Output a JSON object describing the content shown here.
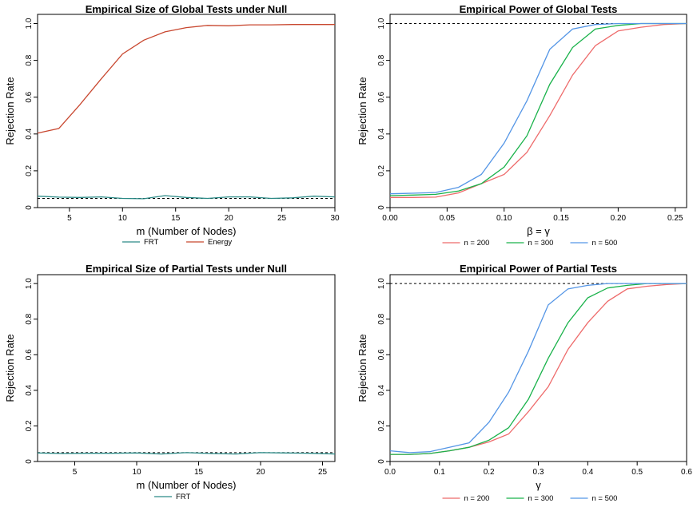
{
  "chart_data": [
    {
      "type": "line",
      "title": "Empirical Size of Global Tests under Null",
      "xlabel": "m (Number of Nodes)",
      "ylabel": "Rejection Rate",
      "xlim": [
        2,
        30
      ],
      "ylim": [
        0,
        1.05
      ],
      "xticks": [
        "5",
        "10",
        "15",
        "20",
        "25",
        "30"
      ],
      "yticks": [
        "0",
        "0.2",
        "0.4",
        "0.6",
        "0.8",
        "1.0"
      ],
      "reference_line": 0.05,
      "legend": "bottom",
      "x": [
        2,
        4,
        6,
        8,
        10,
        12,
        14,
        16,
        18,
        20,
        22,
        24,
        26,
        28,
        30
      ],
      "series": [
        {
          "name": "FRT",
          "color": "#2a8a86",
          "values": [
            0.062,
            0.057,
            0.055,
            0.058,
            0.05,
            0.048,
            0.065,
            0.055,
            0.05,
            0.058,
            0.058,
            0.05,
            0.053,
            0.062,
            0.058
          ]
        },
        {
          "name": "Energy",
          "color": "#c8472f",
          "values": [
            0.405,
            0.43,
            0.56,
            0.7,
            0.835,
            0.91,
            0.955,
            0.978,
            0.99,
            0.988,
            0.993,
            0.993,
            0.995,
            0.995,
            0.995
          ]
        }
      ]
    },
    {
      "type": "line",
      "title": "Empirical Power of Global Tests",
      "xlabel": "β = γ",
      "ylabel": "Rejection Rate",
      "xlim": [
        0,
        0.26
      ],
      "ylim": [
        0,
        1.05
      ],
      "xticks": [
        "0.00",
        "0.05",
        "0.10",
        "0.15",
        "0.20",
        "0.25"
      ],
      "yticks": [
        "0",
        "0.2",
        "0.4",
        "0.6",
        "0.8",
        "1.0"
      ],
      "reference_line": 1.0,
      "legend": "bottom",
      "x": [
        0,
        0.02,
        0.04,
        0.06,
        0.08,
        0.1,
        0.12,
        0.14,
        0.16,
        0.18,
        0.2,
        0.22,
        0.24,
        0.26
      ],
      "series": [
        {
          "name": "n = 200",
          "color": "#ee6b6b",
          "values": [
            0.055,
            0.055,
            0.057,
            0.08,
            0.13,
            0.18,
            0.3,
            0.5,
            0.72,
            0.88,
            0.96,
            0.98,
            0.995,
            1.0
          ]
        },
        {
          "name": "n = 300",
          "color": "#19b24a",
          "values": [
            0.065,
            0.068,
            0.072,
            0.09,
            0.13,
            0.22,
            0.39,
            0.67,
            0.87,
            0.97,
            0.99,
            1.0,
            1.0,
            1.0
          ]
        },
        {
          "name": "n = 500",
          "color": "#5596e6",
          "values": [
            0.075,
            0.078,
            0.082,
            0.11,
            0.18,
            0.35,
            0.58,
            0.86,
            0.97,
            0.995,
            1.0,
            1.0,
            1.0,
            1.0
          ]
        }
      ]
    },
    {
      "type": "line",
      "title": "Empirical Size of Partial Tests under Null",
      "xlabel": "m (Number of Nodes)",
      "ylabel": "Rejection Rate",
      "xlim": [
        2,
        26
      ],
      "ylim": [
        0,
        1.05
      ],
      "xticks": [
        "5",
        "10",
        "15",
        "20",
        "25"
      ],
      "yticks": [
        "0",
        "0.2",
        "0.4",
        "0.6",
        "0.8",
        "1.0"
      ],
      "reference_line": 0.05,
      "legend": "bottom",
      "x": [
        2,
        4,
        6,
        8,
        10,
        12,
        14,
        16,
        18,
        20,
        22,
        24,
        26
      ],
      "series": [
        {
          "name": "FRT",
          "color": "#2a8a86",
          "values": [
            0.048,
            0.045,
            0.046,
            0.046,
            0.048,
            0.042,
            0.05,
            0.045,
            0.042,
            0.05,
            0.048,
            0.046,
            0.042
          ]
        }
      ]
    },
    {
      "type": "line",
      "title": "Empirical Power of Partial Tests",
      "xlabel": "γ",
      "ylabel": "Rejection Rate",
      "xlim": [
        0,
        0.6
      ],
      "ylim": [
        0,
        1.05
      ],
      "xticks": [
        "0.0",
        "0.1",
        "0.2",
        "0.3",
        "0.4",
        "0.5",
        "0.6"
      ],
      "yticks": [
        "0",
        "0.2",
        "0.4",
        "0.6",
        "0.8",
        "1.0"
      ],
      "reference_line": 1.0,
      "legend": "bottom",
      "x": [
        0,
        0.04,
        0.08,
        0.12,
        0.16,
        0.2,
        0.24,
        0.28,
        0.32,
        0.36,
        0.4,
        0.44,
        0.48,
        0.52,
        0.56,
        0.6
      ],
      "series": [
        {
          "name": "n = 200",
          "color": "#ee6b6b",
          "values": [
            0.04,
            0.04,
            0.045,
            0.06,
            0.08,
            0.11,
            0.155,
            0.28,
            0.42,
            0.63,
            0.78,
            0.9,
            0.97,
            0.985,
            0.995,
            1.0
          ]
        },
        {
          "name": "n = 300",
          "color": "#19b24a",
          "values": [
            0.04,
            0.04,
            0.045,
            0.06,
            0.08,
            0.12,
            0.19,
            0.35,
            0.58,
            0.78,
            0.92,
            0.975,
            0.99,
            1.0,
            1.0,
            1.0
          ]
        },
        {
          "name": "n = 500",
          "color": "#5596e6",
          "values": [
            0.06,
            0.05,
            0.055,
            0.08,
            0.105,
            0.22,
            0.39,
            0.62,
            0.88,
            0.97,
            0.99,
            1.0,
            1.0,
            1.0,
            1.0,
            1.0
          ]
        }
      ]
    }
  ]
}
